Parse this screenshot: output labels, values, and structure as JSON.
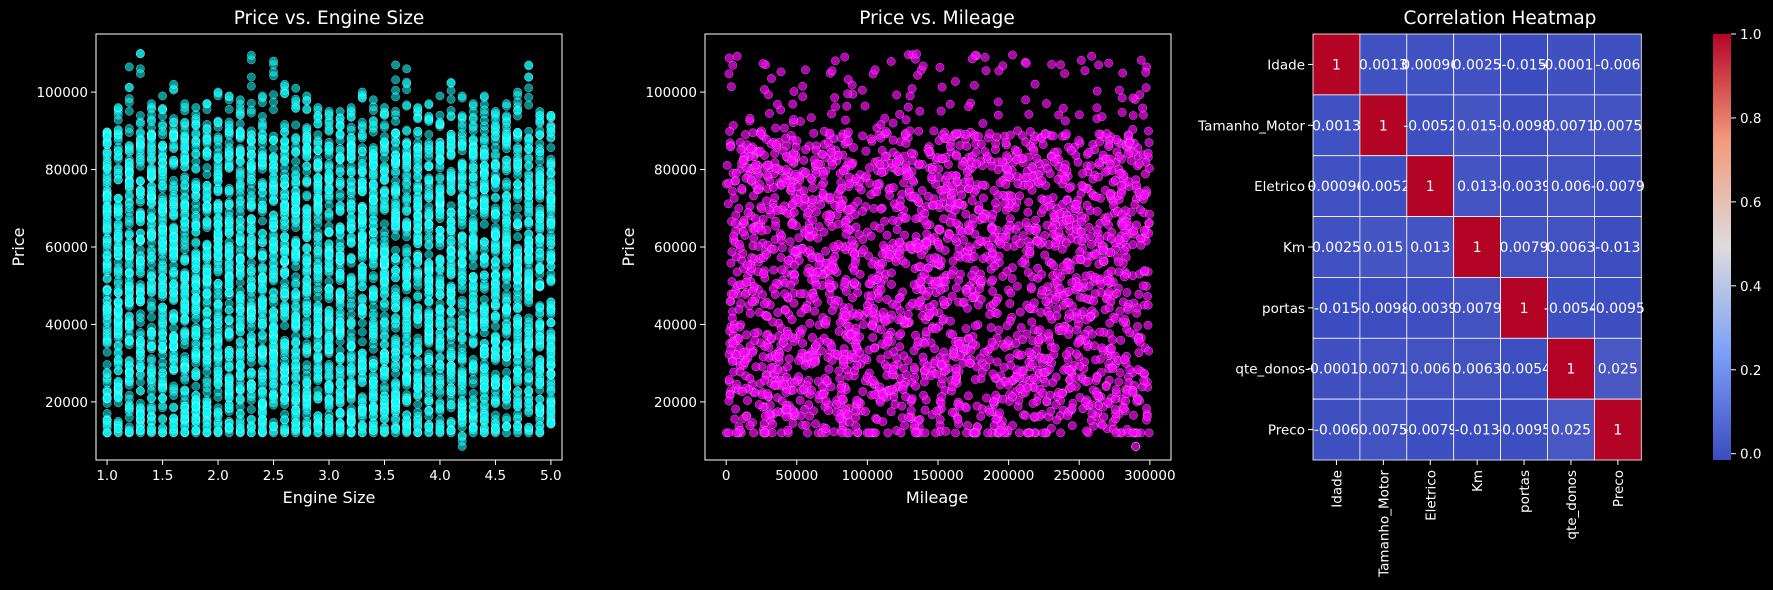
{
  "chart_data": [
    {
      "type": "scatter",
      "title": "Price vs. Engine Size",
      "xlabel": "Engine Size",
      "ylabel": "Price",
      "xlim": [
        0.9,
        5.1
      ],
      "ylim": [
        5000,
        115000
      ],
      "xticks": [
        "1.0",
        "1.5",
        "2.0",
        "2.5",
        "3.0",
        "3.5",
        "4.0",
        "4.5",
        "5.0"
      ],
      "xtick_values": [
        1.0,
        1.5,
        2.0,
        2.5,
        3.0,
        3.5,
        4.0,
        4.5,
        5.0
      ],
      "yticks": [
        "20000",
        "40000",
        "60000",
        "80000",
        "100000"
      ],
      "ytick_values": [
        20000,
        40000,
        60000,
        80000,
        100000
      ],
      "color": "#00ffff",
      "series": [
        {
          "x_categories": [
            1.0,
            1.1,
            1.2,
            1.3,
            1.4,
            1.5,
            1.6,
            1.7,
            1.8,
            1.9,
            2.0,
            2.1,
            2.2,
            2.3,
            2.4,
            2.5,
            2.6,
            2.7,
            2.8,
            2.9,
            3.0,
            3.1,
            3.2,
            3.3,
            3.4,
            3.5,
            3.6,
            3.7,
            3.8,
            3.9,
            4.0,
            4.1,
            4.2,
            4.3,
            4.4,
            4.5,
            4.6,
            4.7,
            4.8,
            4.9,
            5.0
          ],
          "dense_y_range": [
            14000,
            90000
          ],
          "column_max": [
            88500,
            96000,
            106500,
            110000,
            97000,
            99000,
            102000,
            97000,
            96000,
            97000,
            100000,
            99000,
            98000,
            109500,
            99000,
            108000,
            102000,
            101000,
            99000,
            96000,
            95000,
            95000,
            96000,
            100000,
            98000,
            96000,
            107000,
            106000,
            96000,
            97000,
            99000,
            102500,
            99000,
            97000,
            99000,
            95000,
            97000,
            100000,
            107000,
            95000,
            94000
          ],
          "column_min": [
            12000,
            12000,
            12000,
            12000,
            12000,
            12000,
            12000,
            12000,
            12000,
            12000,
            12000,
            12000,
            12000,
            12000,
            12000,
            12000,
            12000,
            12000,
            12000,
            12000,
            12000,
            12000,
            12000,
            12000,
            12000,
            12000,
            12000,
            12000,
            12000,
            12000,
            12000,
            12000,
            8500,
            12000,
            12000,
            12000,
            12000,
            12000,
            12000,
            12000,
            15000
          ]
        }
      ]
    },
    {
      "type": "scatter",
      "title": "Price vs. Mileage",
      "xlabel": "Mileage",
      "ylabel": "Price",
      "xlim": [
        -15000,
        315000
      ],
      "ylim": [
        5000,
        115000
      ],
      "xticks": [
        "0",
        "50000",
        "100000",
        "150000",
        "200000",
        "250000",
        "300000"
      ],
      "xtick_values": [
        0,
        50000,
        100000,
        150000,
        200000,
        250000,
        300000
      ],
      "yticks": [
        "20000",
        "40000",
        "60000",
        "80000",
        "100000"
      ],
      "ytick_values": [
        20000,
        40000,
        60000,
        80000,
        100000
      ],
      "color": "#ff00ff",
      "series": [
        {
          "x_range": [
            0,
            300000
          ],
          "dense_y_range": [
            15000,
            90000
          ],
          "y_min": 8500,
          "y_max": 110000,
          "floor_value": 12000
        }
      ]
    },
    {
      "type": "heatmap",
      "title": "Correlation Heatmap",
      "categories": [
        "Idade",
        "Tamanho_Motor",
        "Eletrico",
        "Km",
        "portas",
        "qte_donos",
        "Preco"
      ],
      "values": [
        [
          1,
          0.0013,
          0.00096,
          0.0025,
          -0.015,
          -0.00012,
          -0.006
        ],
        [
          0.0013,
          1,
          -0.0052,
          0.015,
          -0.0098,
          0.0071,
          0.0075
        ],
        [
          0.00096,
          -0.0052,
          1,
          0.013,
          -0.0039,
          0.006,
          -0.0079
        ],
        [
          0.0025,
          0.015,
          0.013,
          1,
          0.0079,
          0.0063,
          -0.013
        ],
        [
          -0.015,
          -0.0098,
          -0.0039,
          0.0079,
          1,
          -0.0054,
          -0.0095
        ],
        [
          -0.00012,
          0.0071,
          0.006,
          0.0063,
          -0.0054,
          1,
          0.025
        ],
        [
          -0.006,
          0.0075,
          -0.0079,
          -0.013,
          -0.0095,
          0.025,
          1
        ]
      ],
      "annotations": [
        [
          "1",
          "0.0013",
          "0.00096",
          "0.0025",
          "-0.015",
          "-0.00012",
          "-0.006"
        ],
        [
          "0.0013",
          "1",
          "-0.0052",
          "0.015",
          "-0.0098",
          "0.0071",
          "0.0075"
        ],
        [
          "0.00096",
          "-0.0052",
          "1",
          "0.013",
          "-0.0039",
          "0.006",
          "-0.0079"
        ],
        [
          "0.0025",
          "0.015",
          "0.013",
          "1",
          "0.0079",
          "0.0063",
          "-0.013"
        ],
        [
          "-0.015",
          "-0.0098",
          "-0.0039",
          "0.0079",
          "1",
          "-0.0054",
          "-0.0095"
        ],
        [
          "-0.00012",
          "0.0071",
          "0.006",
          "0.0063",
          "-0.0054",
          "1",
          "0.025"
        ],
        [
          "-0.006",
          "0.0075",
          "-0.0079",
          "-0.013",
          "-0.0095",
          "0.025",
          "1"
        ]
      ],
      "colormap": "coolwarm",
      "colorbar_range": [
        -0.015,
        1.0
      ],
      "colorbar_ticks": [
        "0.0",
        "0.2",
        "0.4",
        "0.6",
        "0.8",
        "1.0"
      ],
      "colorbar_tick_values": [
        0.0,
        0.2,
        0.4,
        0.6,
        0.8,
        1.0
      ],
      "colors": {
        "low": "#3b4cc0",
        "mid": "#dddcdc",
        "high": "#b40426"
      }
    }
  ]
}
